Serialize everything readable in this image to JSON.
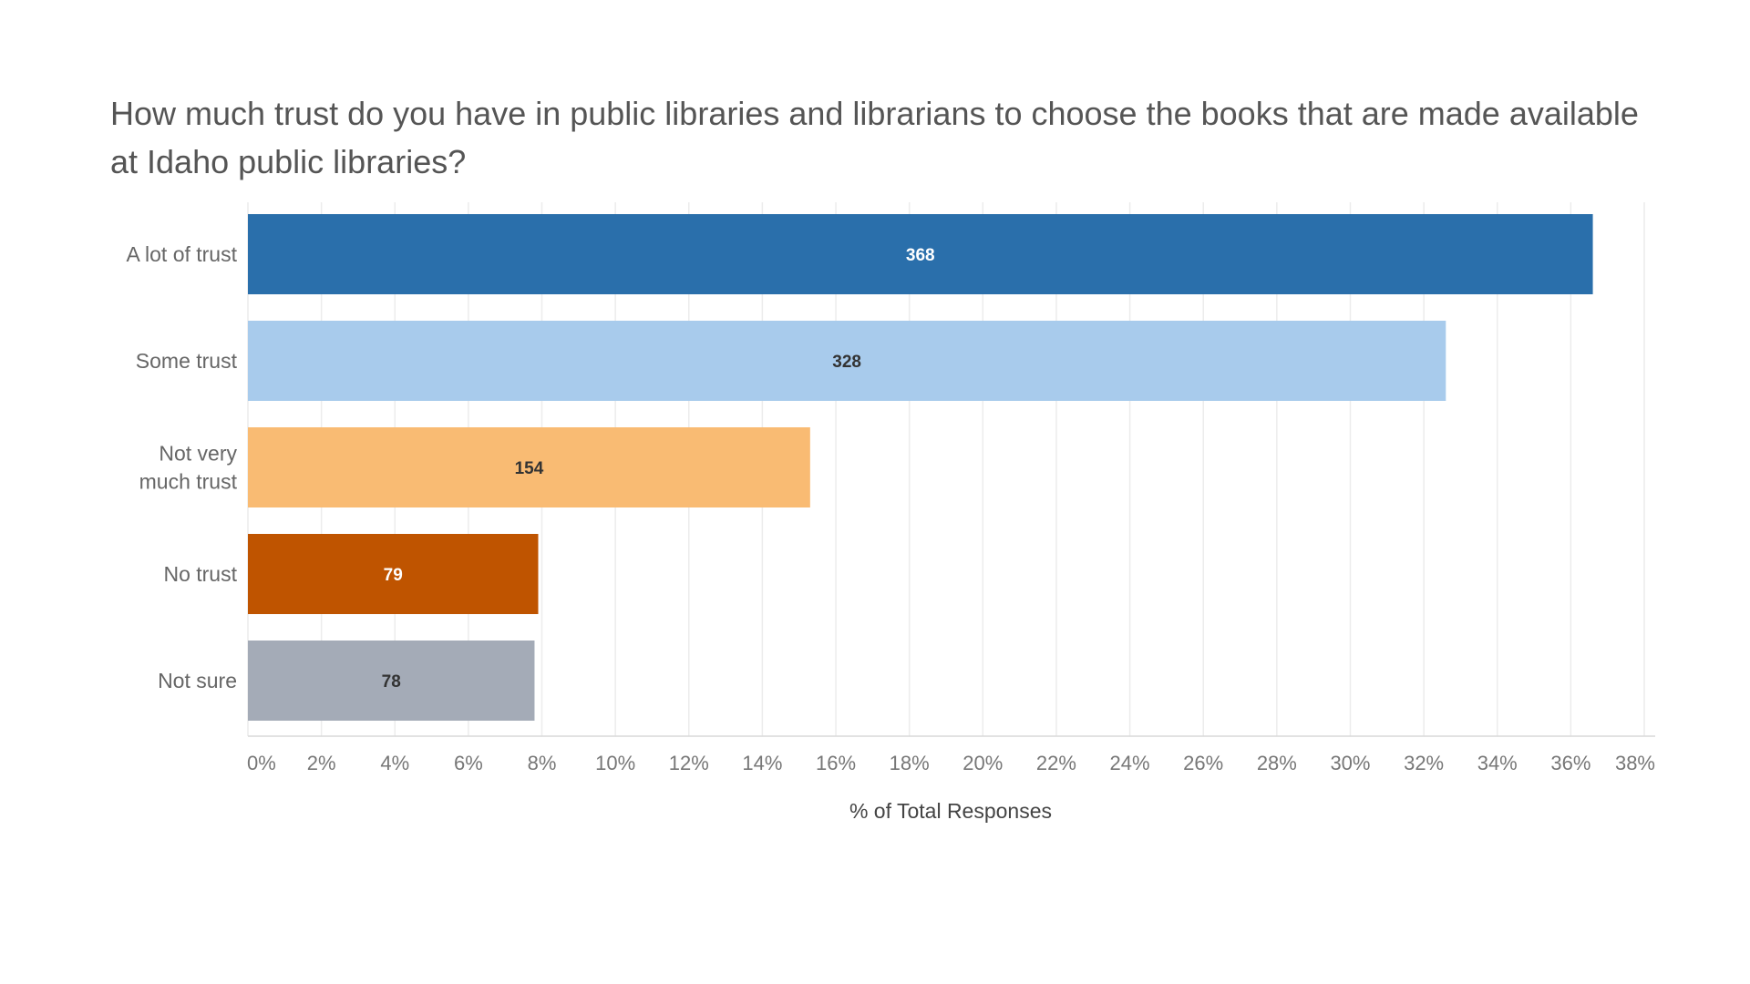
{
  "colors": {
    "background": "#ffffff",
    "gridline": "#ececec",
    "axis": "#d9d9d9"
  },
  "chart_data": {
    "type": "bar",
    "orientation": "horizontal",
    "title": "How much trust do you have in public libraries and librarians to choose the books that are made available at Idaho public libraries?",
    "xlabel": "% of Total Responses",
    "ylabel": "",
    "xlim": [
      0,
      38
    ],
    "x_ticks": [
      0,
      2,
      4,
      6,
      8,
      10,
      12,
      14,
      16,
      18,
      20,
      22,
      24,
      26,
      28,
      30,
      32,
      34,
      36,
      38
    ],
    "x_tick_labels": [
      "0%",
      "2%",
      "4%",
      "6%",
      "8%",
      "10%",
      "12%",
      "14%",
      "16%",
      "18%",
      "20%",
      "22%",
      "24%",
      "26%",
      "28%",
      "30%",
      "32%",
      "34%",
      "36%",
      "38%"
    ],
    "grid": true,
    "categories": [
      [
        "A lot of trust"
      ],
      [
        "Some trust"
      ],
      [
        "Not very",
        "much trust"
      ],
      [
        "No trust"
      ],
      [
        "Not sure"
      ]
    ],
    "values": [
      36.6,
      32.6,
      15.3,
      7.9,
      7.8
    ],
    "data_labels": [
      "368",
      "328",
      "154",
      "79",
      "78"
    ],
    "bar_colors": [
      "#2a6fab",
      "#a8cbec",
      "#f9bb73",
      "#bf5400",
      "#a4abb7"
    ],
    "label_colors": [
      "#ffffff",
      "#333333",
      "#333333",
      "#ffffff",
      "#333333"
    ]
  }
}
